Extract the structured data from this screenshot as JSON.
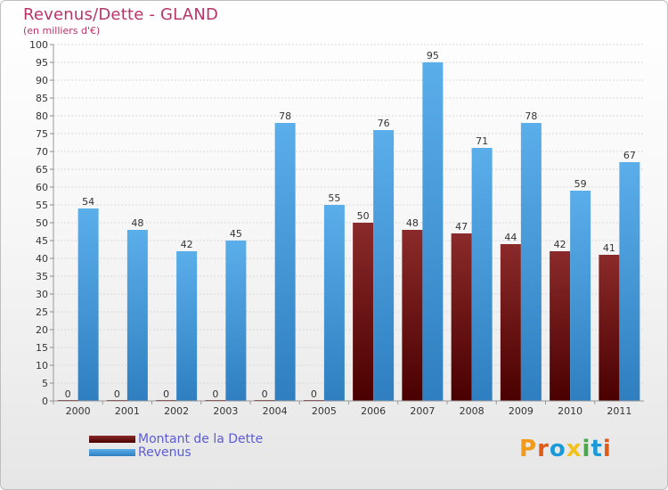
{
  "header": {
    "title": "Revenus/Dette - GLAND",
    "subtitle": "(en milliers d'€)"
  },
  "logo": {
    "text": "Proxiti"
  },
  "chart_data": {
    "type": "bar",
    "categories": [
      "2000",
      "2001",
      "2002",
      "2003",
      "2004",
      "2005",
      "2006",
      "2007",
      "2008",
      "2009",
      "2010",
      "2011"
    ],
    "series": [
      {
        "name": "Montant de la Dette",
        "color": "#7a1a1a",
        "values": [
          0,
          0,
          0,
          0,
          0,
          0,
          50,
          48,
          47,
          44,
          42,
          41
        ]
      },
      {
        "name": "Revenus",
        "color": "#4aa3e6",
        "values": [
          54,
          48,
          42,
          45,
          78,
          55,
          76,
          95,
          71,
          78,
          59,
          67
        ]
      }
    ],
    "ylim": [
      0,
      100
    ],
    "yticks": [
      0,
      5,
      10,
      15,
      20,
      25,
      30,
      35,
      40,
      45,
      50,
      55,
      60,
      65,
      70,
      75,
      80,
      85,
      90,
      95,
      100
    ],
    "grid": true,
    "legend_position": "bottom-left"
  }
}
